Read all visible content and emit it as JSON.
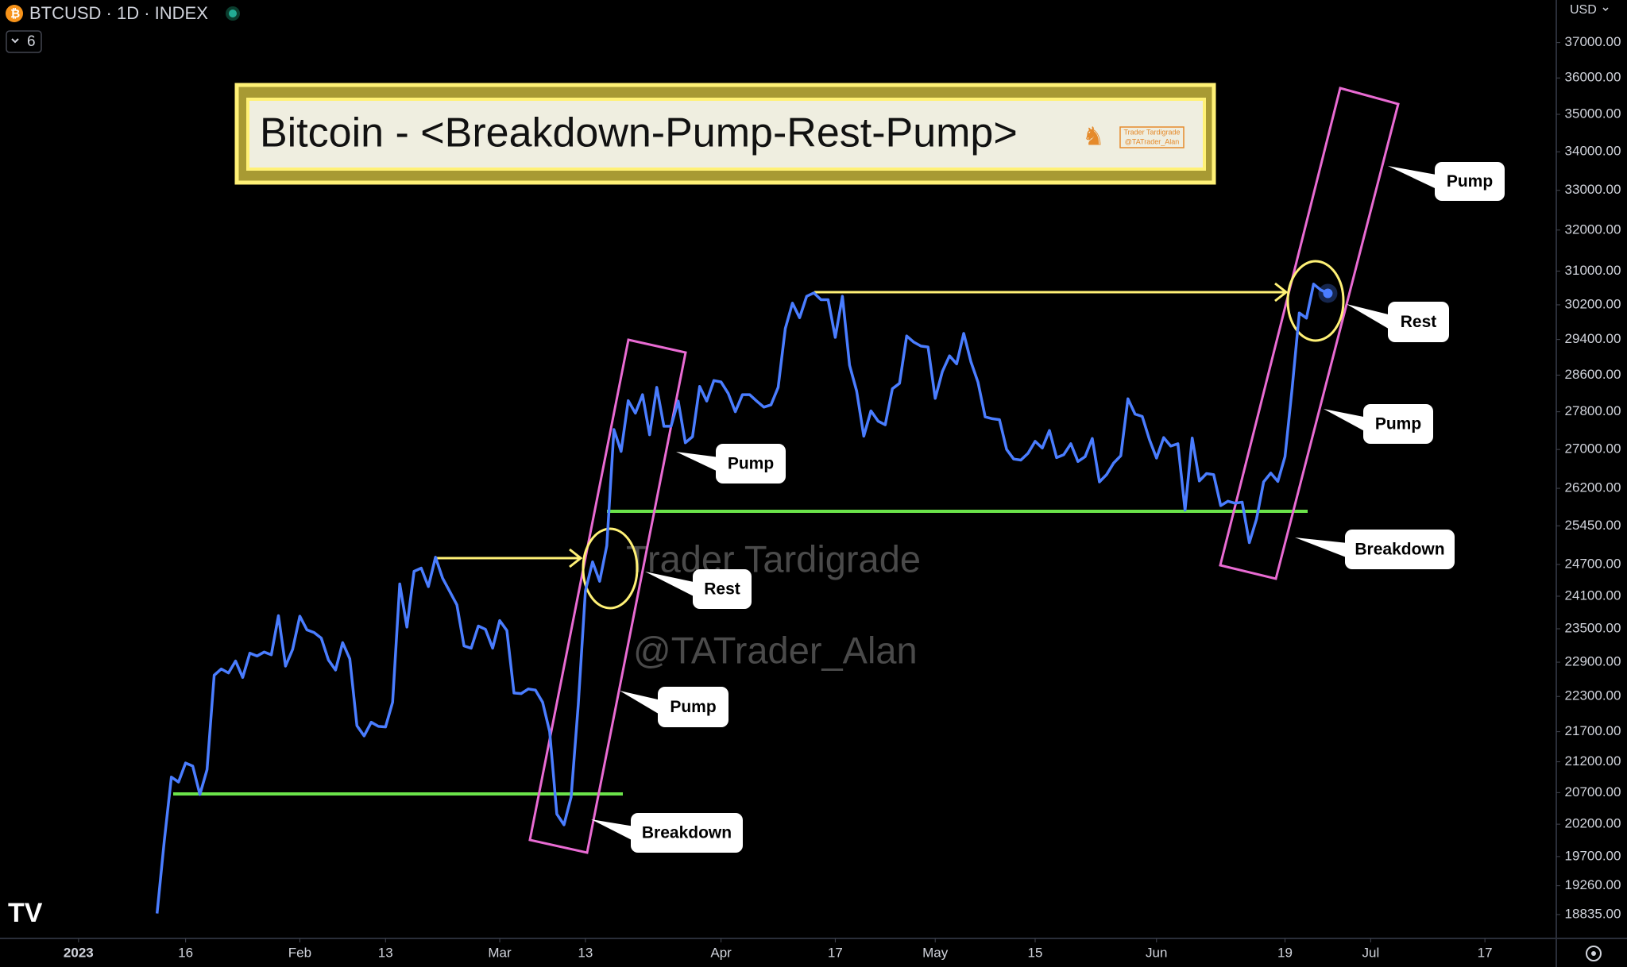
{
  "chart_data": {
    "type": "line",
    "header": {
      "symbol": "BTCUSD · 1D · INDEX",
      "indicator_count": 6,
      "currency": "USD"
    },
    "title": "Bitcoin - <Breakdown-Pump-Rest-Pump>",
    "logo": [
      "Trader Tardigrade",
      "@TATrader_Alan"
    ],
    "watermark": [
      "Trader Tardigrade",
      "@TATrader_Alan"
    ],
    "labels": [
      "Pump",
      "Rest",
      "Pump",
      "Breakdown",
      "Pump",
      "Rest",
      "Pump",
      "Breakdown"
    ],
    "color": "#4a7dff",
    "log_scale": true,
    "xlim": [
      "2022-12-21",
      "2023-07-27"
    ],
    "xticks": [
      {
        "value": "2023-01-01",
        "label": "2023"
      },
      {
        "value": "2023-01-16",
        "label": "16"
      },
      {
        "value": "2023-02-01",
        "label": "Feb"
      },
      {
        "value": "2023-02-13",
        "label": "13"
      },
      {
        "value": "2023-03-01",
        "label": "Mar"
      },
      {
        "value": "2023-03-13",
        "label": "13"
      },
      {
        "value": "2023-04-01",
        "label": "Apr"
      },
      {
        "value": "2023-04-17",
        "label": "17"
      },
      {
        "value": "2023-05-01",
        "label": "May"
      },
      {
        "value": "2023-05-15",
        "label": "15"
      },
      {
        "value": "2023-06-01",
        "label": "Jun"
      },
      {
        "value": "2023-06-19",
        "label": "19"
      },
      {
        "value": "2023-07-01",
        "label": "Jul"
      },
      {
        "value": "2023-07-17",
        "label": "17"
      }
    ],
    "ylim": [
      18490,
      38240
    ],
    "yticks": [
      {
        "value": 37000,
        "label": "37000.00"
      },
      {
        "value": 36000,
        "label": "36000.00"
      },
      {
        "value": 35000,
        "label": "35000.00"
      },
      {
        "value": 34000,
        "label": "34000.00"
      },
      {
        "value": 33000,
        "label": "33000.00"
      },
      {
        "value": 32000,
        "label": "32000.00"
      },
      {
        "value": 31000,
        "label": "31000.00"
      },
      {
        "value": 30200,
        "label": "30200.00"
      },
      {
        "value": 29400,
        "label": "29400.00"
      },
      {
        "value": 28600,
        "label": "28600.00"
      },
      {
        "value": 27800,
        "label": "27800.00"
      },
      {
        "value": 27000,
        "label": "27000.00"
      },
      {
        "value": 26200,
        "label": "26200.00"
      },
      {
        "value": 25450,
        "label": "25450.00"
      },
      {
        "value": 24700,
        "label": "24700.00"
      },
      {
        "value": 24100,
        "label": "24100.00"
      },
      {
        "value": 23500,
        "label": "23500.00"
      },
      {
        "value": 22900,
        "label": "22900.00"
      },
      {
        "value": 22300,
        "label": "22300.00"
      },
      {
        "value": 21700,
        "label": "21700.00"
      },
      {
        "value": 21200,
        "label": "21200.00"
      },
      {
        "value": 20700,
        "label": "20700.00"
      },
      {
        "value": 20200,
        "label": "20200.00"
      },
      {
        "value": 19700,
        "label": "19700.00"
      },
      {
        "value": 19260,
        "label": "19260.00"
      },
      {
        "value": 18835,
        "label": "18835.00"
      }
    ],
    "x": [
      "2023-01-12",
      "2023-01-13",
      "2023-01-14",
      "2023-01-15",
      "2023-01-16",
      "2023-01-17",
      "2023-01-18",
      "2023-01-19",
      "2023-01-20",
      "2023-01-21",
      "2023-01-22",
      "2023-01-23",
      "2023-01-24",
      "2023-01-25",
      "2023-01-26",
      "2023-01-27",
      "2023-01-28",
      "2023-01-29",
      "2023-01-30",
      "2023-01-31",
      "2023-02-01",
      "2023-02-02",
      "2023-02-03",
      "2023-02-04",
      "2023-02-05",
      "2023-02-06",
      "2023-02-07",
      "2023-02-08",
      "2023-02-09",
      "2023-02-10",
      "2023-02-11",
      "2023-02-12",
      "2023-02-13",
      "2023-02-14",
      "2023-02-15",
      "2023-02-16",
      "2023-02-17",
      "2023-02-18",
      "2023-02-19",
      "2023-02-20",
      "2023-02-21",
      "2023-02-22",
      "2023-02-23",
      "2023-02-24",
      "2023-02-25",
      "2023-02-26",
      "2023-02-27",
      "2023-02-28",
      "2023-03-01",
      "2023-03-02",
      "2023-03-03",
      "2023-03-04",
      "2023-03-05",
      "2023-03-06",
      "2023-03-07",
      "2023-03-08",
      "2023-03-09",
      "2023-03-10",
      "2023-03-11",
      "2023-03-12",
      "2023-03-13",
      "2023-03-14",
      "2023-03-15",
      "2023-03-16",
      "2023-03-17",
      "2023-03-18",
      "2023-03-19",
      "2023-03-20",
      "2023-03-21",
      "2023-03-22",
      "2023-03-23",
      "2023-03-24",
      "2023-03-25",
      "2023-03-26",
      "2023-03-27",
      "2023-03-28",
      "2023-03-29",
      "2023-03-30",
      "2023-03-31",
      "2023-04-01",
      "2023-04-02",
      "2023-04-03",
      "2023-04-04",
      "2023-04-05",
      "2023-04-06",
      "2023-04-07",
      "2023-04-08",
      "2023-04-09",
      "2023-04-10",
      "2023-04-11",
      "2023-04-12",
      "2023-04-13",
      "2023-04-14",
      "2023-04-15",
      "2023-04-16",
      "2023-04-17",
      "2023-04-18",
      "2023-04-19",
      "2023-04-20",
      "2023-04-21",
      "2023-04-22",
      "2023-04-23",
      "2023-04-24",
      "2023-04-25",
      "2023-04-26",
      "2023-04-27",
      "2023-04-28",
      "2023-04-29",
      "2023-04-30",
      "2023-05-01",
      "2023-05-02",
      "2023-05-03",
      "2023-05-04",
      "2023-05-05",
      "2023-05-06",
      "2023-05-07",
      "2023-05-08",
      "2023-05-09",
      "2023-05-10",
      "2023-05-11",
      "2023-05-12",
      "2023-05-13",
      "2023-05-14",
      "2023-05-15",
      "2023-05-16",
      "2023-05-17",
      "2023-05-18",
      "2023-05-19",
      "2023-05-20",
      "2023-05-21",
      "2023-05-22",
      "2023-05-23",
      "2023-05-24",
      "2023-05-25",
      "2023-05-26",
      "2023-05-27",
      "2023-05-28",
      "2023-05-29",
      "2023-05-30",
      "2023-05-31",
      "2023-06-01",
      "2023-06-02",
      "2023-06-03",
      "2023-06-04",
      "2023-06-05",
      "2023-06-06",
      "2023-06-07",
      "2023-06-08",
      "2023-06-09",
      "2023-06-10",
      "2023-06-11",
      "2023-06-12",
      "2023-06-13",
      "2023-06-14",
      "2023-06-15",
      "2023-06-16",
      "2023-06-17",
      "2023-06-18",
      "2023-06-19",
      "2023-06-20",
      "2023-06-21",
      "2023-06-22",
      "2023-06-23",
      "2023-06-24",
      "2023-06-25"
    ],
    "values": [
      18850,
      19930,
      20950,
      20870,
      21180,
      21130,
      20670,
      21070,
      22670,
      22780,
      22710,
      22920,
      22630,
      23060,
      23010,
      23080,
      23030,
      23740,
      22830,
      23130,
      23730,
      23480,
      23430,
      23330,
      22940,
      22760,
      23250,
      22960,
      21800,
      21630,
      21860,
      21790,
      21780,
      22200,
      24330,
      23530,
      24570,
      24630,
      24280,
      24840,
      24440,
      24190,
      23940,
      23190,
      23150,
      23550,
      23490,
      23150,
      23650,
      23470,
      22360,
      22350,
      22430,
      22410,
      22200,
      21700,
      20360,
      20190,
      20630,
      22160,
      24200,
      24750,
      24380,
      25060,
      27420,
      26960,
      28040,
      27770,
      28170,
      27310,
      28330,
      27490,
      27490,
      28030,
      27140,
      27270,
      28350,
      28030,
      28480,
      28450,
      28200,
      27800,
      28170,
      28170,
      28030,
      27900,
      27950,
      28330,
      29650,
      30240,
      29900,
      30400,
      30480,
      30320,
      30320,
      29450,
      30400,
      28820,
      28250,
      27280,
      27820,
      27600,
      27520,
      28300,
      28420,
      29480,
      29340,
      29250,
      29230,
      28090,
      28680,
      29030,
      28850,
      29540,
      28900,
      28440,
      27690,
      27650,
      27630,
      27000,
      26800,
      26780,
      26920,
      27170,
      27030,
      27400,
      26830,
      26890,
      27120,
      26750,
      26850,
      27230,
      26330,
      26480,
      26720,
      26870,
      28080,
      27750,
      27700,
      27210,
      26820,
      27250,
      27070,
      27120,
      25760,
      27240,
      26350,
      26500,
      26480,
      25850,
      25940,
      25900,
      25920,
      25120,
      25580,
      26330,
      26510,
      26340,
      26850,
      28310,
      30010,
      29890,
      30690,
      30550,
      30470
    ]
  }
}
